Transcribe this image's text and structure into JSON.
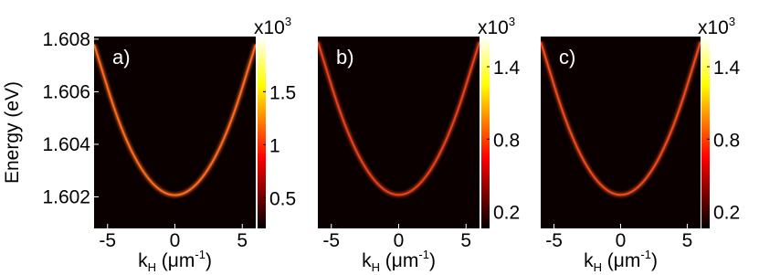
{
  "chart_data": [
    {
      "type": "heatmap",
      "panel_label": "a)",
      "xlabel": {
        "base": "k",
        "sub": "H",
        "mid": " (μm",
        "sup": "-1",
        "end": ")"
      },
      "ylabel": "Energy (eV)",
      "xlim": [
        -6,
        6
      ],
      "xticks": [
        -5,
        0,
        5
      ],
      "ylim": [
        1.6008,
        1.6081
      ],
      "yticks": [
        1.602,
        1.604,
        1.606,
        1.608
      ],
      "x": [
        -6,
        -4,
        -2,
        0,
        2,
        4,
        6
      ],
      "series": [
        {
          "values": [
            1.6078,
            1.6045,
            1.60256,
            1.6019,
            1.60256,
            1.6045,
            1.6078
          ],
          "color": "#ff6a1e"
        }
      ],
      "colorbar_label": {
        "base": "x10",
        "sup": "3"
      },
      "clim": [
        0.21,
        2.02
      ],
      "cticks": [
        0.5,
        1,
        1.5
      ]
    },
    {
      "type": "heatmap",
      "panel_label": "b)",
      "xlabel": {
        "base": "k",
        "sub": "H",
        "mid": " (μm",
        "sup": "-1",
        "end": ")"
      },
      "xlim": [
        -6,
        6
      ],
      "xticks": [
        -5,
        0,
        5
      ],
      "ylim": [
        1.6008,
        1.6081
      ],
      "x": [
        -6,
        -4,
        -2,
        0,
        2,
        4,
        6
      ],
      "series": [
        {
          "values": [
            1.6079,
            1.6046,
            1.6026,
            1.6019,
            1.6026,
            1.6046,
            1.6079
          ],
          "color": "#e8401a"
        }
      ],
      "colorbar_label": {
        "base": "x10",
        "sup": "3"
      },
      "clim": [
        0.06,
        1.65
      ],
      "cticks": [
        0.2,
        0.8,
        1.4
      ]
    },
    {
      "type": "heatmap",
      "panel_label": "c)",
      "xlabel": {
        "base": "k",
        "sub": "H",
        "mid": " (μm",
        "sup": "-1",
        "end": ")"
      },
      "xlim": [
        -6,
        6
      ],
      "xticks": [
        -5,
        0,
        5
      ],
      "ylim": [
        1.6008,
        1.6081
      ],
      "x": [
        -6,
        -4,
        -2,
        0,
        2,
        4,
        6
      ],
      "series": [
        {
          "values": [
            1.6079,
            1.6046,
            1.6026,
            1.6019,
            1.6026,
            1.6046,
            1.6079
          ],
          "color": "#ee4a1a"
        }
      ],
      "colorbar_label": {
        "base": "x10",
        "sup": "3"
      },
      "clim": [
        0.06,
        1.65
      ],
      "cticks": [
        0.2,
        0.8,
        1.4
      ]
    }
  ]
}
